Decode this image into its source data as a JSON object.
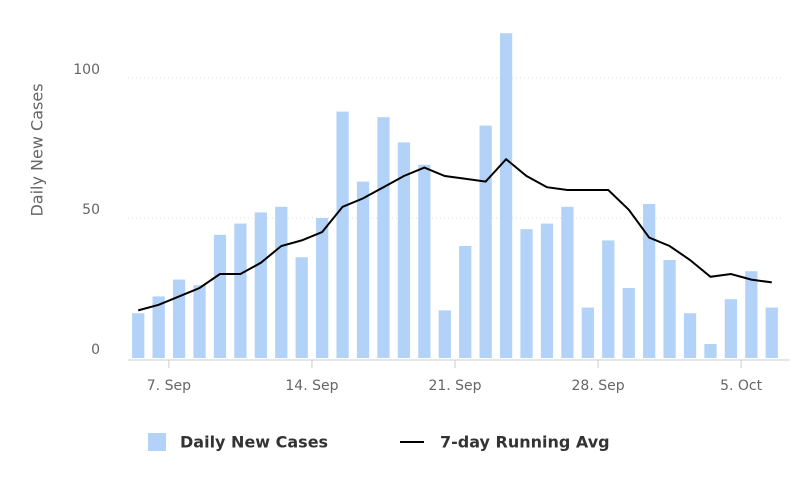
{
  "chart_data": {
    "type": "bar-line",
    "y_label": "Daily New Cases",
    "categories": [
      null,
      null,
      "7. Sep",
      null,
      null,
      null,
      null,
      null,
      null,
      "14. Sep",
      null,
      null,
      null,
      null,
      null,
      null,
      "21. Sep",
      null,
      null,
      null,
      null,
      null,
      null,
      "28. Sep",
      null,
      null,
      null,
      null,
      null,
      null,
      "5. Oct",
      null
    ],
    "series": [
      {
        "name": "Daily New Cases",
        "kind": "bar",
        "color": "#b3d2f8",
        "values": [
          16,
          22,
          28,
          26,
          44,
          48,
          52,
          54,
          36,
          50,
          88,
          63,
          86,
          77,
          69,
          17,
          40,
          83,
          116,
          46,
          48,
          54,
          18,
          42,
          25,
          55,
          35,
          16,
          5,
          21,
          31,
          18
        ]
      },
      {
        "name": "7-day Running Avg",
        "kind": "line",
        "color": "#000000",
        "values": [
          17,
          19,
          22,
          25,
          30,
          30,
          34,
          40,
          42,
          45,
          54,
          57,
          61,
          65,
          68,
          65,
          64,
          63,
          71,
          65,
          61,
          60,
          60,
          60,
          53,
          43,
          40,
          35,
          29,
          30,
          28,
          27
        ]
      }
    ],
    "ylim": [
      0,
      120
    ],
    "yticks": [
      0,
      50,
      100
    ],
    "grid": true
  }
}
